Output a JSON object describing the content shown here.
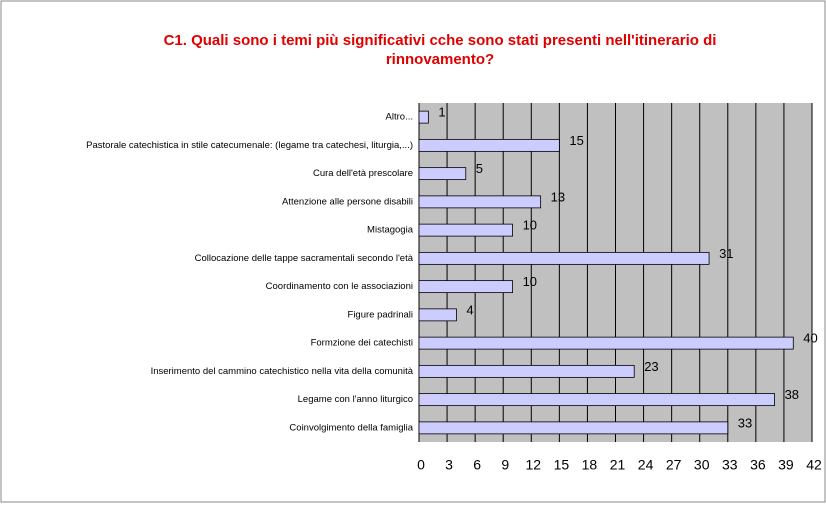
{
  "chart_data": {
    "type": "bar",
    "orientation": "horizontal",
    "title_lines": [
      "C1. Quali sono i temi più significativi cche sono stati presenti nell'itinerario di",
      "rinnovamento?"
    ],
    "categories": [
      "Altro...",
      "Pastorale catechistica in stile catecumenale: (legame tra catechesi, liturgia,...)",
      "Cura dell'età prescolare",
      "Attenzione alle persone disabili",
      "Mistagogia",
      "Collocazione delle tappe sacramentali secondo l'età",
      "Coordinamento con le associazioni",
      "Figure padrinali",
      "Formzione dei catechisti",
      "Inserimento del cammino catechistico nella vita della comunità",
      "Legame con l'anno liturgico",
      "Coinvolgimento della famiglia"
    ],
    "values": [
      1,
      15,
      5,
      13,
      10,
      31,
      10,
      4,
      40,
      23,
      38,
      33
    ],
    "color": "#ccccff",
    "xlim": [
      0,
      42
    ],
    "xticks": [
      0,
      3,
      6,
      9,
      12,
      15,
      18,
      21,
      24,
      27,
      30,
      33,
      36,
      39,
      42
    ],
    "grid": true
  }
}
